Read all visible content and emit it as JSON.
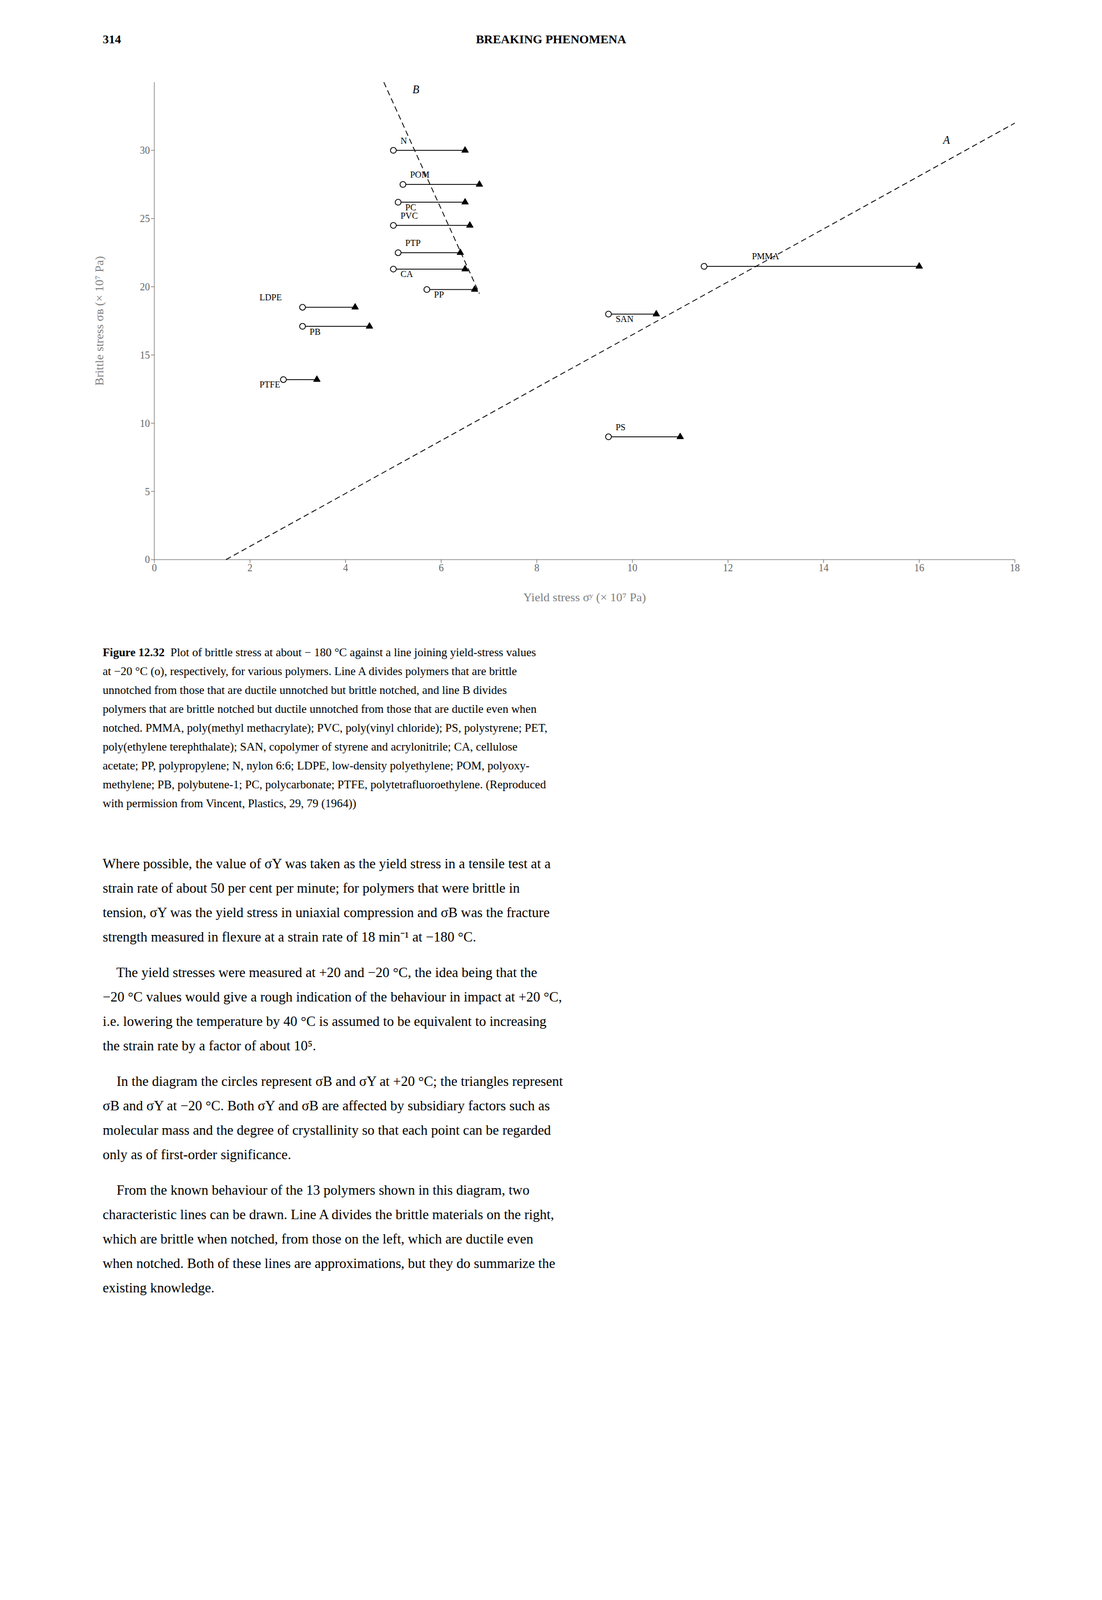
{
  "chart_data": {
    "type": "scatter",
    "page_number": "314",
    "title": "BREAKING PHENOMENA",
    "x_label": "Yield stress σʸ (× 10⁷ Pa)",
    "y_label": "Brittle stress σʙ (× 10⁷ Pa)",
    "xlim": [
      0,
      18
    ],
    "ylim": [
      0,
      35
    ],
    "xticks": [
      0,
      2,
      4,
      6,
      8,
      10,
      12,
      14,
      16,
      18
    ],
    "yticks": [
      0,
      5,
      10,
      15,
      20,
      25,
      30
    ],
    "grid": false,
    "color": "#000000",
    "polymers": [
      {
        "name": "N",
        "circle": [
          5.0,
          30.0
        ],
        "triangle": [
          6.5,
          30.0
        ],
        "label_xy": [
          5.15,
          30.5
        ]
      },
      {
        "name": "POM",
        "circle": [
          5.2,
          27.5
        ],
        "triangle": [
          6.8,
          27.5
        ],
        "label_xy": [
          5.35,
          28.0
        ]
      },
      {
        "name": "PC",
        "circle": [
          5.1,
          26.2
        ],
        "triangle": [
          6.5,
          26.2
        ],
        "label_xy": [
          5.25,
          25.6
        ]
      },
      {
        "name": "PVC",
        "circle": [
          5.0,
          24.5
        ],
        "triangle": [
          6.6,
          24.5
        ],
        "label_xy": [
          5.15,
          25.0
        ]
      },
      {
        "name": "PTP",
        "circle": [
          5.1,
          22.5
        ],
        "triangle": [
          6.4,
          22.5
        ],
        "label_xy": [
          5.25,
          23.0
        ]
      },
      {
        "name": "CA",
        "circle": [
          5.0,
          21.3
        ],
        "triangle": [
          6.5,
          21.3
        ],
        "label_xy": [
          5.15,
          20.7
        ]
      },
      {
        "name": "PP",
        "circle": [
          5.7,
          19.8
        ],
        "triangle": [
          6.7,
          19.8
        ],
        "label_xy": [
          5.85,
          19.2
        ]
      },
      {
        "name": "LDPE",
        "circle": [
          3.1,
          18.5
        ],
        "triangle": [
          4.2,
          18.5
        ],
        "label_xy": [
          2.2,
          19.0
        ]
      },
      {
        "name": "PB",
        "circle": [
          3.1,
          17.1
        ],
        "triangle": [
          4.5,
          17.1
        ],
        "label_xy": [
          3.25,
          16.5
        ]
      },
      {
        "name": "PTFE",
        "circle": [
          2.7,
          13.2
        ],
        "triangle": [
          3.4,
          13.2
        ],
        "label_xy": [
          2.2,
          12.6
        ]
      },
      {
        "name": "SAN",
        "circle": [
          9.5,
          18.0
        ],
        "triangle": [
          10.5,
          18.0
        ],
        "label_xy": [
          9.65,
          17.4
        ]
      },
      {
        "name": "PS",
        "circle": [
          9.5,
          9.0
        ],
        "triangle": [
          11.0,
          9.0
        ],
        "label_xy": [
          9.65,
          9.5
        ]
      },
      {
        "name": "PMMA",
        "circle": [
          11.5,
          21.5
        ],
        "triangle": [
          16.0,
          21.5
        ],
        "label_xy": [
          12.5,
          22.0
        ]
      }
    ],
    "lines": [
      {
        "name": "A",
        "x": [
          1.5,
          18.0
        ],
        "y": [
          0.0,
          32.0
        ],
        "label_xy": [
          16.5,
          30.5
        ],
        "line_style": "dashed"
      },
      {
        "name": "B",
        "x": [
          4.8,
          6.8
        ],
        "y": [
          35.0,
          19.5
        ],
        "label_xy": [
          5.4,
          34.2
        ],
        "line_style": "dashed"
      }
    ],
    "caption_label": "Figure 12.32",
    "caption": [
      "Plot of brittle stress at about − 180 °C against a line joining yield-stress values",
      "at −20 °C (o), respectively, for various polymers. Line A divides polymers that are brittle",
      "unnotched from those that are ductile unnotched but brittle notched, and line B divides",
      "polymers that are brittle notched but ductile unnotched from those that are ductile even when",
      "notched. PMMA, poly(methyl methacrylate); PVC, poly(vinyl chloride); PS, polystyrene; PET,",
      "poly(ethylene terephthalate); SAN, copolymer of styrene and acrylonitrile; CA, cellulose",
      "acetate; PP, polypropylene; N, nylon 6:6; LDPE, low-density polyethylene; POM, polyoxy-",
      "methylene; PB, polybutene-1; PC, polycarbonate; PTFE, polytetrafluoroethylene. (Reproduced",
      "with permission from Vincent, Plastics, 29, 79 (1964))"
    ],
    "body": [
      [
        "Where possible, the value of σY was taken as the yield stress in a tensile test at a",
        "strain rate of about 50 per cent per minute; for polymers that were brittle in",
        "tension, σY was the yield stress in uniaxial compression and σB was the fracture",
        "strength measured in flexure at a strain rate of 18 min⁻¹ at −180 °C."
      ],
      [
        "    The yield stresses were measured at +20 and −20 °C, the idea being that the",
        "−20 °C values would give a rough indication of the behaviour in impact at +20 °C,",
        "i.e. lowering the temperature by 40 °C is assumed to be equivalent to increasing",
        "the strain rate by a factor of about 10⁵."
      ],
      [
        "    In the diagram the circles represent σB and σY at +20 °C; the triangles represent",
        "σB and σY at −20 °C. Both σY and σB are affected by subsidiary factors such as",
        "molecular mass and the degree of crystallinity so that each point can be regarded",
        "only as of first-order significance."
      ],
      [
        "    From the known behaviour of the 13 polymers shown in this diagram, two",
        "characteristic lines can be drawn. Line A divides the brittle materials on the right,",
        "which are brittle when notched, from those on the left, which are ductile even",
        "when notched. Both of these lines are approximations, but they do summarize the",
        "existing knowledge."
      ]
    ]
  }
}
